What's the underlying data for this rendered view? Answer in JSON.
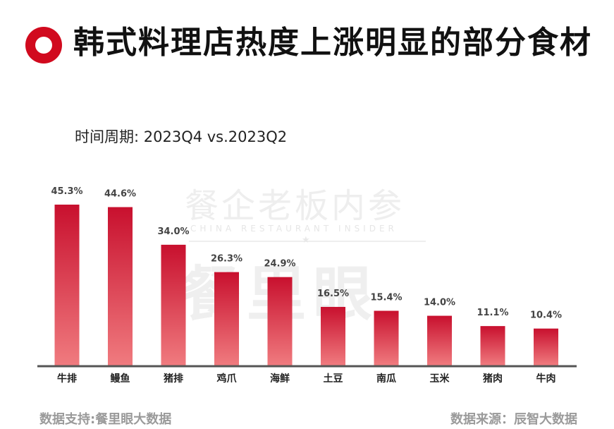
{
  "header": {
    "title": "韩式料理店热度上涨明显的部分食材",
    "subtitle": "时间周期: 2023Q4 vs.2023Q2"
  },
  "watermark": {
    "name": "餐企老板内参",
    "english": "CHINA RESTAURANT INSIDER",
    "brand": "餐里眼"
  },
  "colors": {
    "accent": "#d10a1e",
    "bar_top": "#c8102e",
    "bar_bottom": "#f07b7f",
    "axis": "#555555"
  },
  "chart_data": {
    "type": "bar",
    "categories": [
      "牛排",
      "鳗鱼",
      "猪排",
      "鸡爪",
      "海鲜",
      "土豆",
      "南瓜",
      "玉米",
      "猪肉",
      "牛肉"
    ],
    "values": [
      45.3,
      44.6,
      34.0,
      26.3,
      24.9,
      16.5,
      15.4,
      14.0,
      11.1,
      10.4
    ],
    "value_labels": [
      "45.3%",
      "44.6%",
      "34.0%",
      "26.3%",
      "24.9%",
      "16.5%",
      "15.4%",
      "14.0%",
      "11.1%",
      "10.4%"
    ],
    "ylim": [
      0,
      45.3
    ],
    "grid": false,
    "legend": "none"
  },
  "footer": {
    "left": "数据支持:餐里眼大数据",
    "right": "数据来源：辰智大数据"
  }
}
